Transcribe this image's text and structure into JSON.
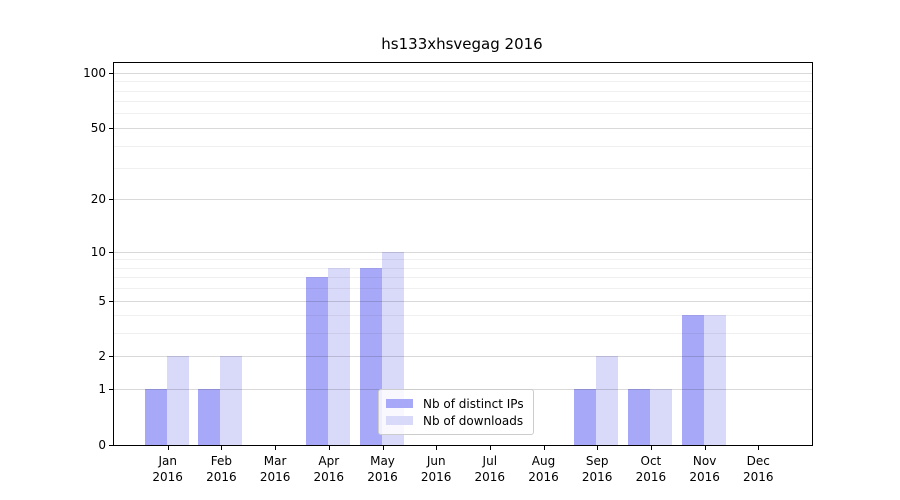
{
  "figure_title": "hs133xhsvegag 2016",
  "chart_data": {
    "type": "bar",
    "title": "hs133xhsvegag 2016",
    "categories": [
      "Jan",
      "Feb",
      "Mar",
      "Apr",
      "May",
      "Jun",
      "Jul",
      "Aug",
      "Sep",
      "Oct",
      "Nov",
      "Dec"
    ],
    "year_label": "2016",
    "series": [
      {
        "name": "Nb of distinct IPs",
        "color": "#a8a8f8",
        "values": [
          1,
          1,
          0,
          7,
          8,
          0,
          0,
          0,
          1,
          1,
          4,
          0
        ]
      },
      {
        "name": "Nb of downloads",
        "color": "#d9d9f9",
        "values": [
          2,
          2,
          0,
          8,
          10,
          0,
          0,
          0,
          2,
          1,
          4,
          0
        ]
      }
    ],
    "xlabel": "",
    "ylabel": "",
    "yscale": "log1p",
    "ylim": [
      0,
      113
    ],
    "yticks_major": [
      0,
      1,
      2,
      5,
      10,
      20,
      50,
      100
    ],
    "yticks_minor": [
      3,
      4,
      6,
      7,
      8,
      9,
      30,
      40,
      60,
      70,
      80,
      90
    ],
    "grid": "horizontal",
    "legend_position": "inside lower-center"
  }
}
